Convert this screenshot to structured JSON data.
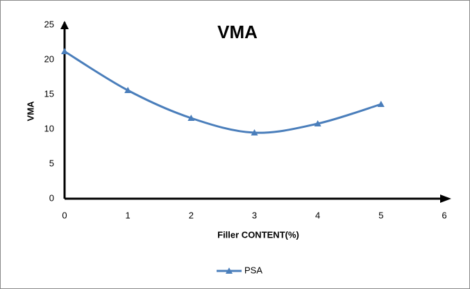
{
  "chart_data": {
    "type": "line",
    "title": "VMA",
    "x_label": "Filler CONTENT(%)",
    "y_label": "VMA",
    "x": [
      0,
      1,
      2,
      3,
      4,
      5
    ],
    "series": [
      {
        "name": "PSA",
        "color": "#4a7ebb",
        "values": [
          21.2,
          15.6,
          11.6,
          9.5,
          10.8,
          13.6
        ]
      }
    ],
    "xlim": [
      0,
      6
    ],
    "xticks": [
      0,
      1,
      2,
      3,
      4,
      5,
      6
    ],
    "ylim": [
      0,
      25
    ],
    "yticks": [
      0,
      5,
      10,
      15,
      20,
      25
    ],
    "grid": false,
    "smooth": true,
    "legend": "bottom"
  }
}
